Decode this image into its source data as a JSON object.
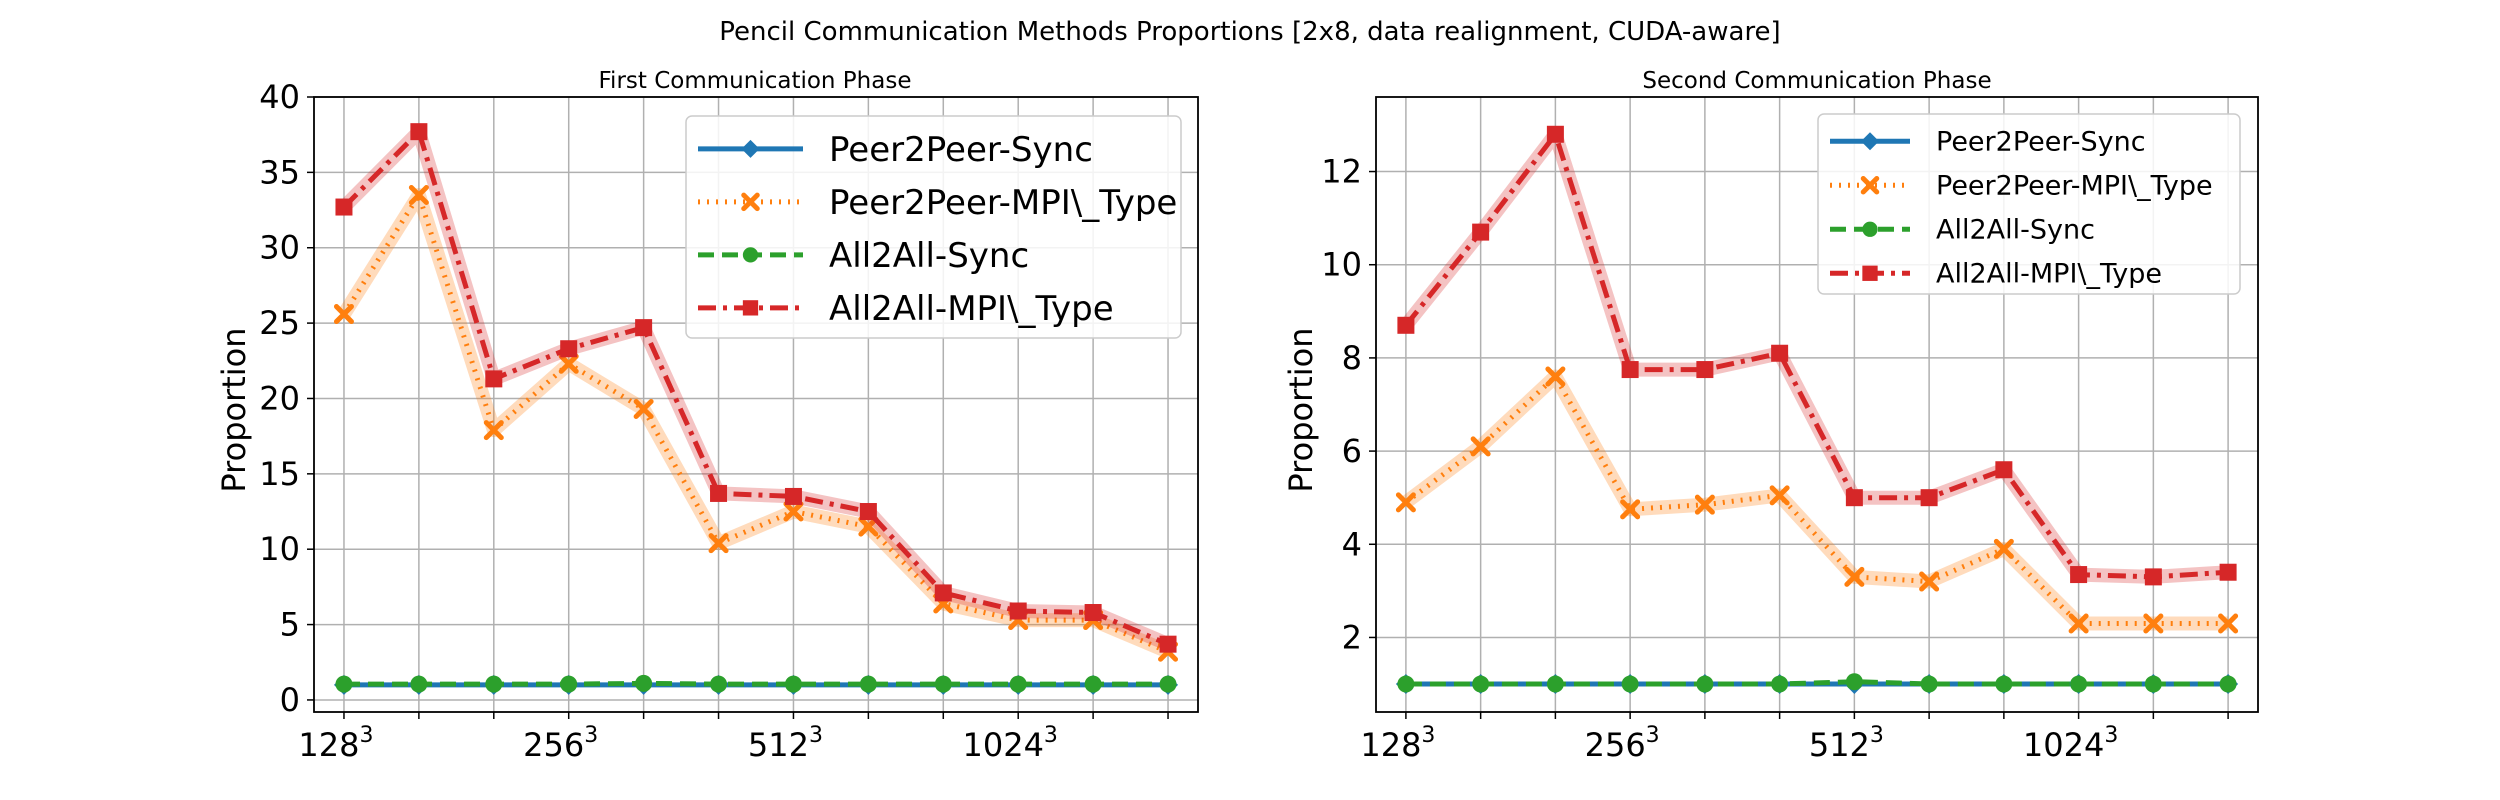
{
  "title": "Pencil Communication Methods Proportions [2x8, data realignment, CUDA-aware]",
  "colors": {
    "Peer2Peer-Sync": "#1f77b4",
    "Peer2Peer-MPI\\_Type": "#ff7f0e",
    "All2All-Sync": "#2ca02c",
    "All2All-MPI\\_Type": "#d62728",
    "grid": "#b0b0b0"
  },
  "chart_data": [
    {
      "type": "line",
      "title": "First Communication Phase",
      "ylabel": "Proportion",
      "xlabel": "",
      "x": [
        0,
        1,
        2,
        3,
        4,
        5,
        6,
        7,
        8,
        9,
        10,
        11
      ],
      "xticks": [
        {
          "x": 0,
          "base": "128",
          "exp": "3"
        },
        {
          "x": 3,
          "base": "256",
          "exp": "3"
        },
        {
          "x": 6,
          "base": "512",
          "exp": "3"
        },
        {
          "x": 9,
          "base": "1024",
          "exp": "3"
        }
      ],
      "xlim": [
        -0.4,
        11.4
      ],
      "ylim": [
        -0.8,
        40
      ],
      "yticks": [
        0,
        5,
        10,
        15,
        20,
        25,
        30,
        35,
        40
      ],
      "grid": true,
      "legend": "top-right",
      "series": [
        {
          "name": "Peer2Peer-Sync",
          "values": [
            1.0,
            1.0,
            1.0,
            1.0,
            1.0,
            1.0,
            1.0,
            1.0,
            1.0,
            1.0,
            1.0,
            1.0
          ]
        },
        {
          "name": "Peer2Peer-MPI\\_Type",
          "values": [
            25.6,
            33.5,
            17.9,
            22.3,
            19.3,
            10.4,
            12.5,
            11.5,
            6.4,
            5.3,
            5.3,
            3.2
          ]
        },
        {
          "name": "All2All-Sync",
          "values": [
            1.05,
            1.05,
            1.05,
            1.05,
            1.1,
            1.05,
            1.05,
            1.05,
            1.05,
            1.05,
            1.05,
            1.05
          ]
        },
        {
          "name": "All2All-MPI\\_Type",
          "values": [
            32.7,
            37.7,
            21.3,
            23.3,
            24.7,
            13.7,
            13.5,
            12.5,
            7.1,
            5.9,
            5.8,
            3.7
          ]
        }
      ]
    },
    {
      "type": "line",
      "title": "Second Communication Phase",
      "ylabel": "Proportion",
      "xlabel": "",
      "x": [
        0,
        1,
        2,
        3,
        4,
        5,
        6,
        7,
        8,
        9,
        10,
        11
      ],
      "xticks": [
        {
          "x": 0,
          "base": "128",
          "exp": "3"
        },
        {
          "x": 3,
          "base": "256",
          "exp": "3"
        },
        {
          "x": 6,
          "base": "512",
          "exp": "3"
        },
        {
          "x": 9,
          "base": "1024",
          "exp": "3"
        }
      ],
      "xlim": [
        -0.4,
        11.4
      ],
      "ylim": [
        0.4,
        13.6
      ],
      "yticks": [
        2,
        4,
        6,
        8,
        10,
        12
      ],
      "grid": true,
      "legend": "top-right",
      "series": [
        {
          "name": "Peer2Peer-Sync",
          "values": [
            1.0,
            1.0,
            1.0,
            1.0,
            1.0,
            1.0,
            1.0,
            1.0,
            1.0,
            1.0,
            1.0,
            1.0
          ]
        },
        {
          "name": "Peer2Peer-MPI\\_Type",
          "values": [
            4.9,
            6.1,
            7.6,
            4.75,
            4.85,
            5.05,
            3.3,
            3.2,
            3.9,
            2.3,
            2.3,
            2.3
          ]
        },
        {
          "name": "All2All-Sync",
          "values": [
            1.0,
            1.0,
            1.0,
            1.0,
            1.0,
            1.0,
            1.05,
            1.0,
            1.0,
            1.0,
            1.0,
            1.0
          ]
        },
        {
          "name": "All2All-MPI\\_Type",
          "values": [
            8.7,
            10.7,
            12.8,
            7.75,
            7.75,
            8.1,
            5.0,
            5.0,
            5.6,
            3.35,
            3.3,
            3.4
          ]
        }
      ]
    }
  ]
}
